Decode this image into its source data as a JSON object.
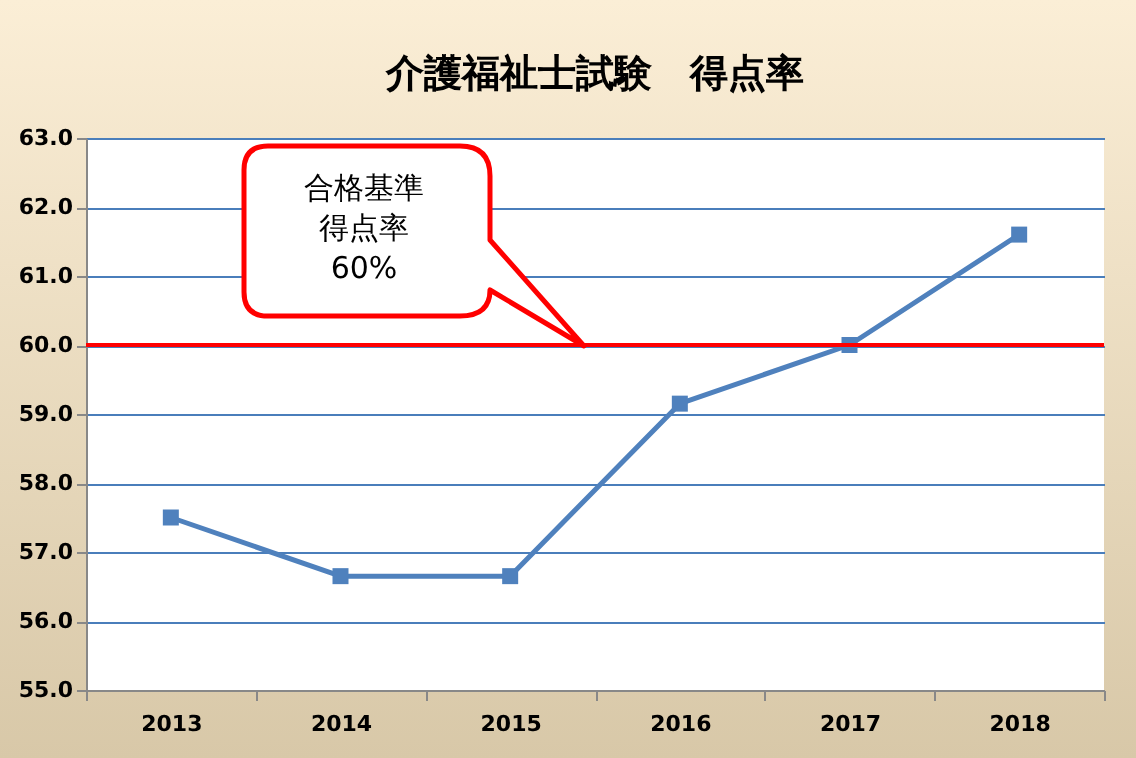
{
  "chart_data": {
    "type": "line",
    "title": "介護福祉士試験　得点率",
    "categories": [
      "2013",
      "2014",
      "2015",
      "2016",
      "2017",
      "2018"
    ],
    "series": [
      {
        "color": "#4f81bd",
        "values": [
          57.5,
          56.65,
          56.65,
          59.15,
          60.0,
          61.6
        ]
      }
    ],
    "ylim": [
      55,
      63
    ],
    "yticks": [
      {
        "value": 55,
        "label": "55.0"
      },
      {
        "value": 56,
        "label": "56.0"
      },
      {
        "value": 57,
        "label": "57.0"
      },
      {
        "value": 58,
        "label": "58.0"
      },
      {
        "value": 59,
        "label": "59.0"
      },
      {
        "value": 60,
        "label": "60.0"
      },
      {
        "value": 61,
        "label": "61.0"
      },
      {
        "value": 62,
        "label": "62.0"
      },
      {
        "value": 63,
        "label": "63.0"
      }
    ],
    "grid": "y",
    "marker": "square",
    "line_style": "solid",
    "ref_lines": [
      {
        "axis": "y",
        "value": 60,
        "color": "#ff0000"
      }
    ],
    "annotations": [
      "合格基準得点率60%"
    ]
  }
}
